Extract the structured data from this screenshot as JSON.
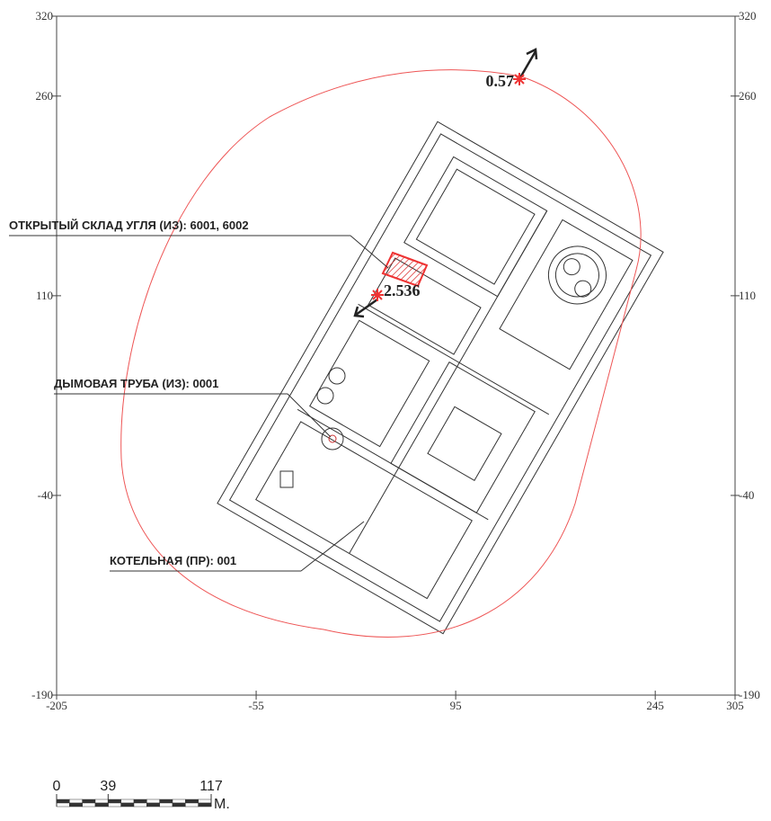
{
  "map": {
    "xlim": [
      -205,
      305
    ],
    "ylim": [
      -190,
      320
    ],
    "xticks": [
      -205,
      -55,
      95,
      245,
      305
    ],
    "yticks": [
      -190,
      -40,
      110,
      260,
      320
    ],
    "labels": [
      "ОТКРЫТЫЙ СКЛАД УГЛЯ (ИЗ): 6001, 6002",
      "ДЫМОВАЯ ТРУБА (ИЗ): 0001",
      "КОТЕЛЬНАЯ (ПР): 001"
    ],
    "markers": [
      {
        "value": 0.57
      },
      {
        "value": 2.536
      }
    ]
  },
  "scale_bar": {
    "ticks": [
      0,
      39,
      117
    ],
    "unit": "М."
  }
}
